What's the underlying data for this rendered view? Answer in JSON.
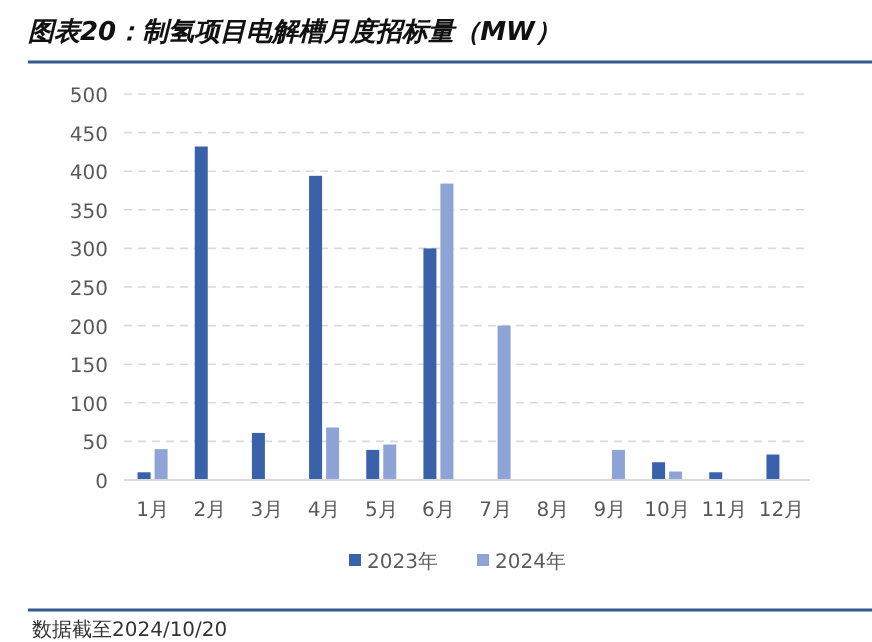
{
  "chart_data": {
    "type": "bar",
    "title": "图表20：制氢项目电解槽月度招标量（MW）",
    "categories": [
      "1月",
      "2月",
      "3月",
      "4月",
      "5月",
      "6月",
      "7月",
      "8月",
      "9月",
      "10月",
      "11月",
      "12月"
    ],
    "series": [
      {
        "name": "2023年",
        "color": "#3a62ab",
        "values": [
          10,
          432,
          61,
          394,
          39,
          300,
          null,
          null,
          null,
          23,
          10,
          33
        ]
      },
      {
        "name": "2024年",
        "color": "#8fa4d6",
        "values": [
          40,
          null,
          null,
          68,
          46,
          384,
          200,
          null,
          39,
          11,
          null,
          null
        ]
      }
    ],
    "ylim": [
      0,
      500
    ],
    "yticks": [
      0,
      50,
      100,
      150,
      200,
      250,
      300,
      350,
      400,
      450,
      500
    ],
    "grid": "y",
    "legend": "bottom",
    "annotations": [
      "数据截至2024/10/20"
    ]
  }
}
